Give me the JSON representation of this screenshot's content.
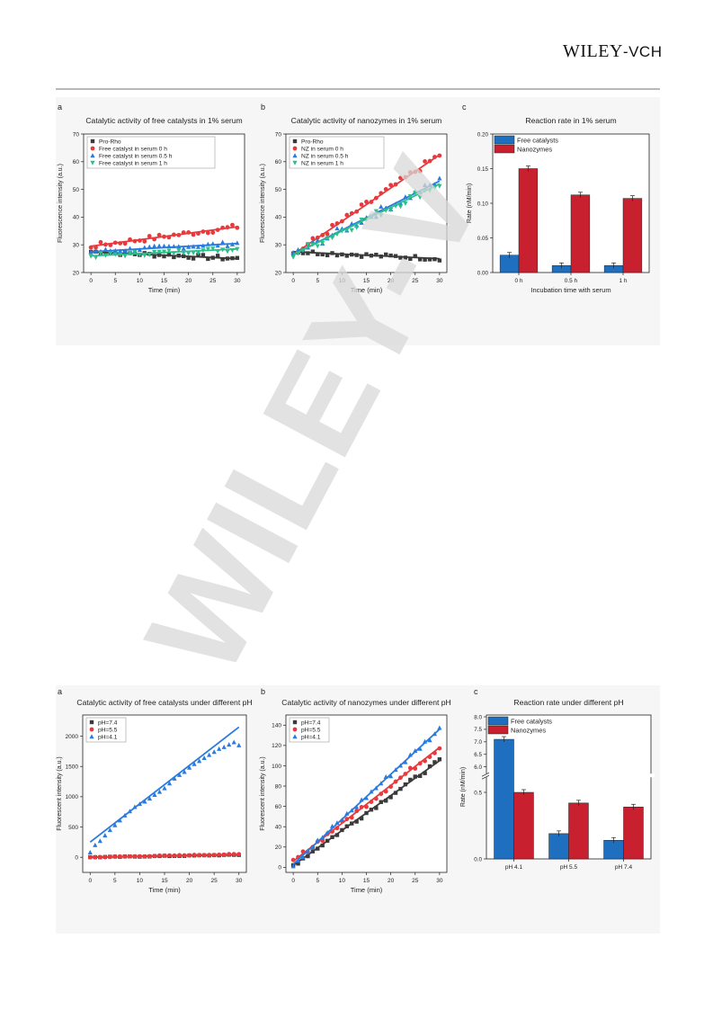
{
  "header": {
    "logo_main": "WILEY",
    "logo_suffix": "-VCH"
  },
  "watermark": {
    "text": "WILEY-V"
  },
  "colors": {
    "black": "#3a3a3a",
    "red": "#e8393d",
    "blue": "#2a7be0",
    "green": "#2bbf8a",
    "teal": "#2a9aa6",
    "bar_blue": "#1f6fc0",
    "bar_red": "#c8202e"
  },
  "chart_data": [
    {
      "panel": "a",
      "type": "scatter",
      "title": "Catalytic activity of free catalysts in 1% serum",
      "xlabel": "Time (min)",
      "ylabel": "Fluorescence intensity (a.u.)",
      "xlim": [
        -1.5,
        31.5
      ],
      "ylim": [
        20,
        70
      ],
      "xticks": [
        0,
        5,
        10,
        15,
        20,
        25,
        30
      ],
      "yticks": [
        20,
        30,
        40,
        50,
        60,
        70
      ],
      "legend": "top-left",
      "series": [
        {
          "name": "Pro-Rho",
          "marker": "square",
          "color": "#3a3a3a",
          "fit": [
            27.5,
            25.0
          ],
          "jitter": 0.8
        },
        {
          "name": "Free catalyst in serum 0 h",
          "marker": "circle",
          "color": "#e8393d",
          "fit": [
            29.5,
            36.5
          ],
          "jitter": 1.0
        },
        {
          "name": "Free catalyst in serum  0.5 h",
          "marker": "triangle",
          "color": "#2a7be0",
          "fit": [
            27.5,
            30.5
          ],
          "jitter": 0.8
        },
        {
          "name": "Free catalyst in serum 1 h",
          "marker": "tri-down",
          "color": "#2bbf8a",
          "fit": [
            26.0,
            28.5
          ],
          "jitter": 0.8
        }
      ]
    },
    {
      "panel": "b",
      "type": "scatter",
      "title": "Catalytic activity of nanozymes in 1% serum",
      "xlabel": "Time (min)",
      "ylabel": "Fluorescence intensity (a.u.)",
      "xlim": [
        -1.5,
        31.5
      ],
      "ylim": [
        20,
        70
      ],
      "xticks": [
        0,
        5,
        10,
        15,
        20,
        25,
        30
      ],
      "yticks": [
        20,
        30,
        40,
        50,
        60,
        70
      ],
      "legend": "top-left",
      "series": [
        {
          "name": "Pro-Rho",
          "marker": "square",
          "color": "#3a3a3a",
          "fit": [
            27.5,
            25.0
          ],
          "jitter": 0.7
        },
        {
          "name": "NZ in serum 0 h",
          "marker": "circle",
          "color": "#e8393d",
          "fit": [
            26.5,
            62.5
          ],
          "jitter": 1.3
        },
        {
          "name": "NZ in serum  0.5 h",
          "marker": "triangle",
          "color": "#2a7be0",
          "fit": [
            26.5,
            53.0
          ],
          "jitter": 1.5
        },
        {
          "name": "NZ in serum 1 h",
          "marker": "tri-down",
          "color": "#2bbf8a",
          "fit": [
            26.5,
            52.0
          ],
          "jitter": 1.5
        }
      ]
    },
    {
      "panel": "c",
      "type": "bar",
      "title": "Reaction rate in 1% serum",
      "xlabel": "Incubation time with serum",
      "ylabel": "Rate (nM/min)",
      "ylim": [
        0,
        0.2
      ],
      "yticks": [
        "0.00",
        "0.05",
        "0.10",
        "0.15",
        "0.20"
      ],
      "categories": [
        "0 h",
        "0.5 h",
        "1 h"
      ],
      "legend": "top-left",
      "series": [
        {
          "name": "Free catalysts",
          "color": "#1f6fc0",
          "values": [
            0.025,
            0.01,
            0.01
          ]
        },
        {
          "name": "Nanozymes",
          "color": "#c8202e",
          "values": [
            0.15,
            0.112,
            0.107
          ]
        }
      ]
    },
    {
      "panel": "a",
      "type": "scatter",
      "title": "Catalytic activity of free catalysts under different pH",
      "xlabel": "Time (min)",
      "ylabel": "Fluorescent intensity (a.u.)",
      "xlim": [
        -1.5,
        31.5
      ],
      "ylim": [
        -250,
        2350
      ],
      "xticks": [
        0,
        5,
        10,
        15,
        20,
        25,
        30
      ],
      "yticks": [
        0,
        500,
        1000,
        1500,
        2000
      ],
      "legend": "top-left",
      "series": [
        {
          "name": "pH=7.4",
          "marker": "square",
          "color": "#3a3a3a",
          "fit": [
            0,
            40
          ],
          "jitter": 5
        },
        {
          "name": "pH=5.5",
          "marker": "circle",
          "color": "#e8393d",
          "fit": [
            0,
            50
          ],
          "jitter": 5
        },
        {
          "name": "pH=4.1",
          "marker": "triangle",
          "color": "#2a7be0",
          "fit": [
            250,
            2150
          ],
          "points": [
            80,
            200,
            270,
            360,
            450,
            530,
            610,
            690,
            760,
            830,
            880,
            920,
            970,
            1030,
            1080,
            1140,
            1220,
            1300,
            1360,
            1410,
            1480,
            1540,
            1590,
            1640,
            1690,
            1740,
            1790,
            1820,
            1860,
            1900,
            1850
          ]
        }
      ]
    },
    {
      "panel": "b",
      "type": "scatter",
      "title": "Catalytic activity of nanozymes under different pH",
      "xlabel": "Time (min)",
      "ylabel": "Fluorescent intensity (a.u.)",
      "xlim": [
        -1.5,
        31.5
      ],
      "ylim": [
        -5,
        150
      ],
      "xticks": [
        0,
        5,
        10,
        15,
        20,
        25,
        30
      ],
      "yticks": [
        0,
        20,
        40,
        60,
        80,
        100,
        120,
        140
      ],
      "legend": "top-left",
      "series": [
        {
          "name": "pH=7.4",
          "marker": "square",
          "color": "#3a3a3a",
          "fit": [
            2,
            105
          ],
          "jitter": 2
        },
        {
          "name": "pH=5.5",
          "marker": "circle",
          "color": "#e8393d",
          "fit": [
            6,
            118
          ],
          "jitter": 2.5
        },
        {
          "name": "pH=4.1",
          "marker": "triangle",
          "color": "#2a7be0",
          "fit": [
            3,
            136
          ],
          "jitter": 2.5
        }
      ]
    },
    {
      "panel": "c",
      "type": "bar",
      "title": "Reaction rate under different pH",
      "xlabel": "",
      "ylabel": "Rate (nM/min)",
      "broken_axis": true,
      "upper_ylim": [
        5.8,
        8.0
      ],
      "upper_yticks": [
        "6.0",
        "6.5",
        "7.0",
        "7.5",
        "8.0"
      ],
      "lower_ylim": [
        0,
        0.6
      ],
      "lower_yticks": [
        "0.0",
        "0.5"
      ],
      "categories": [
        "pH 4.1",
        "pH 5.5",
        "pH 7.4"
      ],
      "legend": "top-left",
      "series": [
        {
          "name": "Free catalysts",
          "color": "#1f6fc0",
          "values": [
            7.1,
            0.19,
            0.14
          ]
        },
        {
          "name": "Nanozymes",
          "color": "#c8202e",
          "values": [
            0.5,
            0.42,
            0.39
          ]
        }
      ]
    }
  ]
}
